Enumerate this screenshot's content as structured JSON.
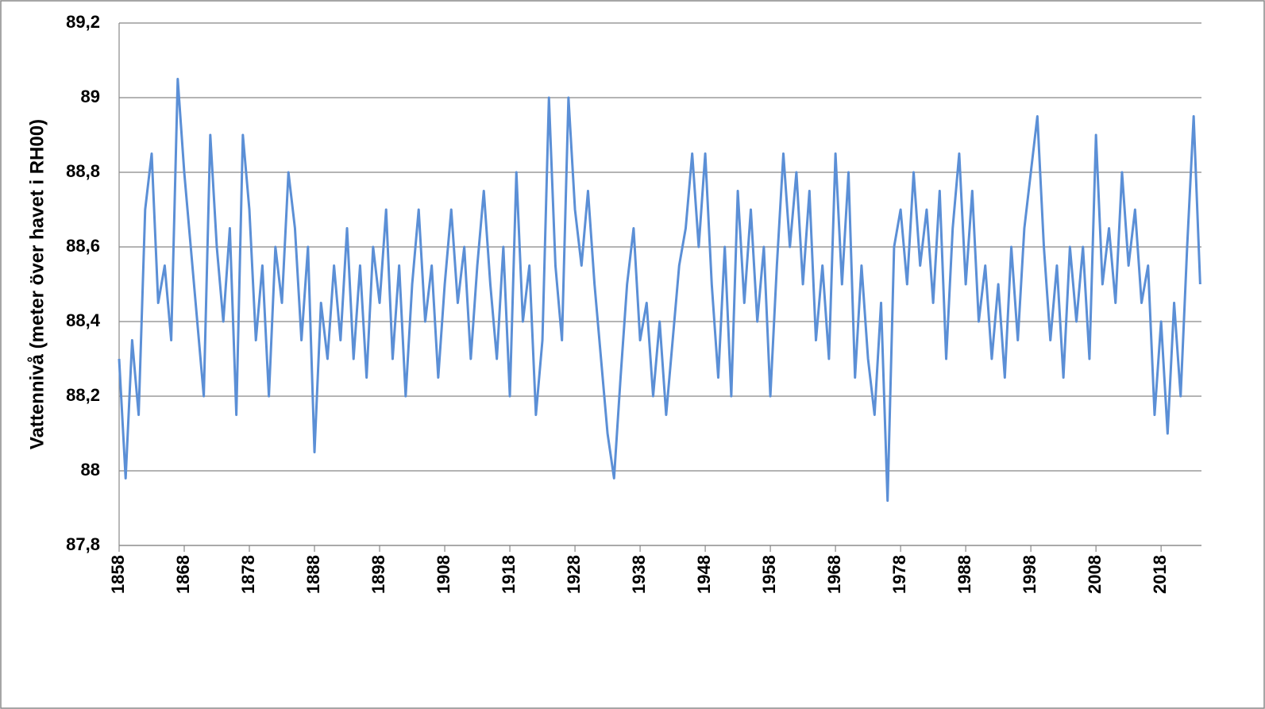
{
  "chart_data": {
    "type": "line",
    "ylabel": "Vattennivå (meter över havet i RH00)",
    "x": [
      1858,
      1859,
      1860,
      1861,
      1862,
      1863,
      1864,
      1865,
      1866,
      1867,
      1868,
      1869,
      1870,
      1871,
      1872,
      1873,
      1874,
      1875,
      1876,
      1877,
      1878,
      1879,
      1880,
      1881,
      1882,
      1883,
      1884,
      1885,
      1886,
      1887,
      1888,
      1889,
      1890,
      1891,
      1892,
      1893,
      1894,
      1895,
      1896,
      1897,
      1898,
      1899,
      1900,
      1901,
      1902,
      1903,
      1904,
      1905,
      1906,
      1907,
      1908,
      1909,
      1910,
      1911,
      1912,
      1913,
      1914,
      1915,
      1916,
      1917,
      1918,
      1919,
      1920,
      1921,
      1922,
      1923,
      1924,
      1925,
      1926,
      1927,
      1928,
      1929,
      1930,
      1931,
      1932,
      1933,
      1934,
      1935,
      1936,
      1937,
      1938,
      1939,
      1940,
      1941,
      1942,
      1943,
      1944,
      1945,
      1946,
      1947,
      1948,
      1949,
      1950,
      1951,
      1952,
      1953,
      1954,
      1955,
      1956,
      1957,
      1958,
      1959,
      1960,
      1961,
      1962,
      1963,
      1964,
      1965,
      1966,
      1967,
      1968,
      1969,
      1970,
      1971,
      1972,
      1973,
      1974,
      1975,
      1976,
      1977,
      1978,
      1979,
      1980,
      1981,
      1982,
      1983,
      1984,
      1985,
      1986,
      1987,
      1988,
      1989,
      1990,
      1991,
      1992,
      1993,
      1994,
      1995,
      1996,
      1997,
      1998,
      1999,
      2000,
      2001,
      2002,
      2003,
      2004,
      2005,
      2006,
      2007,
      2008,
      2009,
      2010,
      2011,
      2012,
      2013,
      2014,
      2015,
      2016,
      2017,
      2018,
      2019,
      2020,
      2021,
      2022,
      2023,
      2024
    ],
    "values": [
      88.3,
      87.98,
      88.35,
      88.15,
      88.7,
      88.85,
      88.45,
      88.55,
      88.35,
      89.05,
      88.8,
      88.6,
      88.4,
      88.2,
      88.9,
      88.6,
      88.4,
      88.65,
      88.15,
      88.9,
      88.7,
      88.35,
      88.55,
      88.2,
      88.6,
      88.45,
      88.8,
      88.65,
      88.35,
      88.6,
      88.05,
      88.45,
      88.3,
      88.55,
      88.35,
      88.65,
      88.3,
      88.55,
      88.25,
      88.6,
      88.45,
      88.7,
      88.3,
      88.55,
      88.2,
      88.5,
      88.7,
      88.4,
      88.55,
      88.25,
      88.5,
      88.7,
      88.45,
      88.6,
      88.3,
      88.55,
      88.75,
      88.5,
      88.3,
      88.6,
      88.2,
      88.8,
      88.4,
      88.55,
      88.15,
      88.35,
      89.0,
      88.55,
      88.35,
      89.0,
      88.7,
      88.55,
      88.75,
      88.5,
      88.3,
      88.1,
      87.98,
      88.25,
      88.5,
      88.65,
      88.35,
      88.45,
      88.2,
      88.4,
      88.15,
      88.35,
      88.55,
      88.65,
      88.85,
      88.6,
      88.85,
      88.5,
      88.25,
      88.6,
      88.2,
      88.75,
      88.45,
      88.7,
      88.4,
      88.6,
      88.2,
      88.55,
      88.85,
      88.6,
      88.8,
      88.5,
      88.75,
      88.35,
      88.55,
      88.3,
      88.85,
      88.5,
      88.8,
      88.25,
      88.55,
      88.3,
      88.15,
      88.45,
      87.92,
      88.6,
      88.7,
      88.5,
      88.8,
      88.55,
      88.7,
      88.45,
      88.75,
      88.3,
      88.65,
      88.85,
      88.5,
      88.75,
      88.4,
      88.55,
      88.3,
      88.5,
      88.25,
      88.6,
      88.35,
      88.65,
      88.8,
      88.95,
      88.6,
      88.35,
      88.55,
      88.25,
      88.6,
      88.4,
      88.6,
      88.3,
      88.9,
      88.5,
      88.65,
      88.45,
      88.8,
      88.55,
      88.7,
      88.45,
      88.55,
      88.15,
      88.4,
      88.1,
      88.45,
      88.2,
      88.6,
      88.95,
      88.5
    ],
    "color": "#5b8fd6",
    "xlim": [
      1858,
      2024.2
    ],
    "xticks": [
      1858,
      1868,
      1878,
      1888,
      1898,
      1908,
      1918,
      1928,
      1938,
      1948,
      1958,
      1968,
      1978,
      1988,
      1998,
      2008,
      2018
    ],
    "ylim": [
      87.8,
      89.2
    ],
    "yticks": [
      {
        "value": 87.8,
        "label": "87,8"
      },
      88,
      {
        "value": 88.2,
        "label": "88,2"
      },
      {
        "value": 88.4,
        "label": "88,4"
      },
      {
        "value": 88.6,
        "label": "88,6"
      },
      {
        "value": 88.8,
        "label": "88,8"
      },
      89,
      {
        "value": 89.2,
        "label": "89,2"
      }
    ],
    "grid": true
  }
}
